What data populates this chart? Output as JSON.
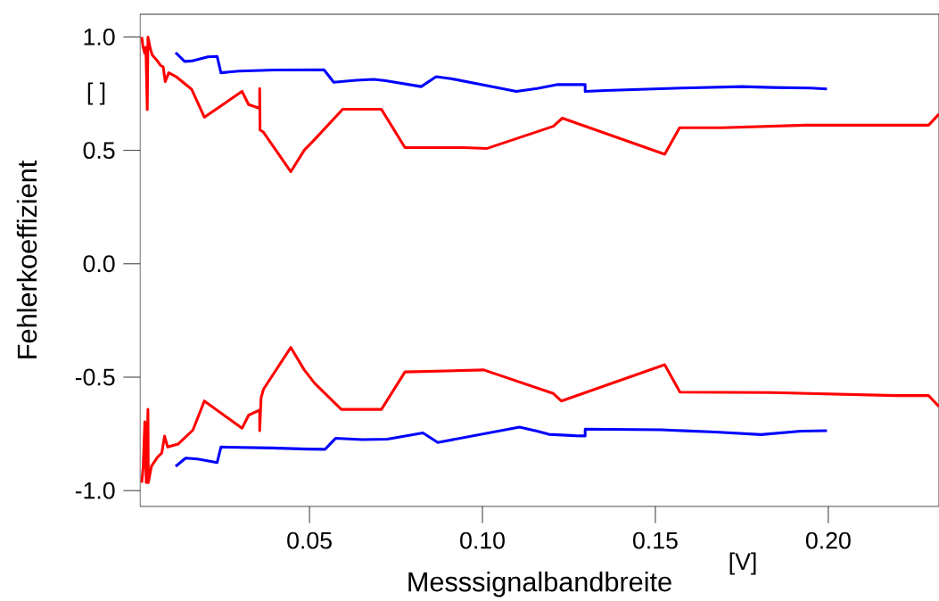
{
  "chart_data": {
    "type": "line",
    "xlabel": "Messsignalbandbreite",
    "ylabel": "Fehlerkoeffizient",
    "annotations": [
      "[ ]",
      "[V]"
    ],
    "xlim": [
      0.001,
      0.232
    ],
    "ylim": [
      -1.07,
      1.1
    ],
    "xticks": [
      {
        "value": 0.05,
        "label": "0.05"
      },
      {
        "value": 0.1,
        "label": "0.10"
      },
      {
        "value": 0.15,
        "label": "0.15"
      },
      {
        "value": 0.2,
        "label": "0.20"
      }
    ],
    "yticks": [
      {
        "value": -1.0,
        "label": "-1.0"
      },
      {
        "value": -0.5,
        "label": "-0.5"
      },
      {
        "value": 0.0,
        "label": "0.0"
      },
      {
        "value": 0.5,
        "label": "0.5"
      },
      {
        "value": 1.0,
        "label": "1.0"
      }
    ],
    "marker": "none",
    "line_style": "solid",
    "series": [
      {
        "color": "#ff0000",
        "x": [
          0.0015,
          0.0019,
          0.0024,
          0.0027,
          0.0031,
          0.0033,
          0.0039,
          0.0045,
          0.006,
          0.0069,
          0.0077,
          0.0083,
          0.0093,
          0.0116,
          0.0159,
          0.0196,
          0.0305,
          0.0324,
          0.0356,
          0.0356,
          0.0357,
          0.0367,
          0.0446,
          0.0485,
          0.0515,
          0.0596,
          0.0708,
          0.0776,
          0.0944,
          0.1012,
          0.1205,
          0.1231,
          0.1527,
          0.157,
          0.1694,
          0.1934,
          0.229,
          0.232
        ],
        "values": [
          1.0,
          0.954,
          0.927,
          0.954,
          0.679,
          1.0,
          0.954,
          0.921,
          0.895,
          0.875,
          0.868,
          0.803,
          0.842,
          0.823,
          0.77,
          0.646,
          0.76,
          0.702,
          0.685,
          0.773,
          0.59,
          0.58,
          0.406,
          0.501,
          0.548,
          0.681,
          0.681,
          0.512,
          0.512,
          0.508,
          0.606,
          0.642,
          0.483,
          0.6,
          0.6,
          0.611,
          0.611,
          0.66
        ]
      },
      {
        "color": "#0000ff",
        "x": [
          0.0113,
          0.0139,
          0.0159,
          0.0206,
          0.0233,
          0.0244,
          0.0296,
          0.0399,
          0.0542,
          0.057,
          0.0635,
          0.0686,
          0.072,
          0.0823,
          0.0866,
          0.0909,
          0.1098,
          0.1158,
          0.1218,
          0.1297,
          0.1297,
          0.1355,
          0.1577,
          0.175,
          0.184,
          0.195,
          0.1996
        ],
        "values": [
          0.931,
          0.892,
          0.894,
          0.912,
          0.914,
          0.842,
          0.849,
          0.854,
          0.855,
          0.8,
          0.809,
          0.813,
          0.807,
          0.781,
          0.825,
          0.816,
          0.76,
          0.773,
          0.79,
          0.79,
          0.76,
          0.764,
          0.775,
          0.781,
          0.777,
          0.775,
          0.771
        ]
      },
      {
        "color": "#ff0000",
        "x": [
          0.0015,
          0.0019,
          0.0024,
          0.0028,
          0.0033,
          0.0034,
          0.0043,
          0.006,
          0.0073,
          0.0081,
          0.009,
          0.012,
          0.0163,
          0.0196,
          0.0305,
          0.0324,
          0.0356,
          0.0356,
          0.036,
          0.0367,
          0.0446,
          0.0485,
          0.0515,
          0.0592,
          0.0708,
          0.0776,
          0.1004,
          0.1205,
          0.1228,
          0.1527,
          0.1571,
          0.1836,
          0.2195,
          0.229,
          0.232
        ],
        "values": [
          -0.965,
          -0.9,
          -0.697,
          -0.965,
          -0.642,
          -0.965,
          -0.893,
          -0.854,
          -0.834,
          -0.76,
          -0.808,
          -0.795,
          -0.733,
          -0.605,
          -0.725,
          -0.668,
          -0.645,
          -0.736,
          -0.592,
          -0.553,
          -0.369,
          -0.468,
          -0.527,
          -0.642,
          -0.642,
          -0.477,
          -0.468,
          -0.572,
          -0.605,
          -0.445,
          -0.566,
          -0.568,
          -0.581,
          -0.581,
          -0.63
        ]
      },
      {
        "color": "#0000ff",
        "x": [
          0.0113,
          0.0142,
          0.0176,
          0.0233,
          0.0244,
          0.039,
          0.0493,
          0.0545,
          0.0576,
          0.0652,
          0.0725,
          0.0828,
          0.0871,
          0.1107,
          0.1158,
          0.1192,
          0.1269,
          0.1297,
          0.1297,
          0.1518,
          0.1673,
          0.1806,
          0.1921,
          0.1996
        ],
        "values": [
          -0.893,
          -0.857,
          -0.861,
          -0.876,
          -0.808,
          -0.812,
          -0.817,
          -0.818,
          -0.769,
          -0.775,
          -0.773,
          -0.746,
          -0.788,
          -0.72,
          -0.738,
          -0.752,
          -0.758,
          -0.759,
          -0.729,
          -0.732,
          -0.742,
          -0.753,
          -0.738,
          -0.736
        ]
      }
    ]
  }
}
